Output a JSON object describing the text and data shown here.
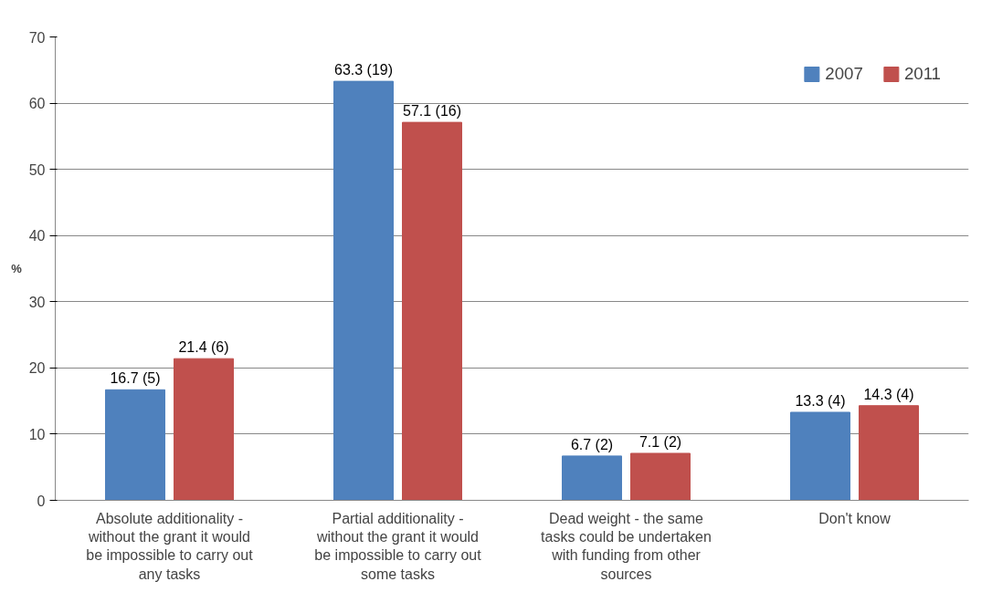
{
  "chart_data": {
    "type": "bar",
    "ylabel": "%",
    "categories": [
      "Absolute additionality - without the grant it would be impossible to carry out any tasks",
      "Partial additionality - without the grant it would be impossible to carry out some tasks",
      "Dead weight - the same tasks could be undertaken with funding from other sources",
      "Don't know"
    ],
    "series": [
      {
        "name": "2007",
        "color": "#4f81bd",
        "values": [
          16.7,
          63.3,
          6.7,
          13.3
        ],
        "value_labels": [
          "16.7 (5)",
          "63.3 (19)",
          "6.7 (2)",
          "13.3 (4)"
        ]
      },
      {
        "name": "2011",
        "color": "#c0504d",
        "values": [
          21.4,
          57.1,
          7.1,
          14.3
        ],
        "value_labels": [
          "21.4 (6)",
          "57.1 (16)",
          "7.1 (2)",
          "14.3 (4)"
        ]
      }
    ],
    "ylim": [
      0,
      70
    ],
    "yticks": [
      0,
      10,
      20,
      30,
      40,
      50,
      60,
      70
    ],
    "grid": "y",
    "legend": "top right"
  }
}
